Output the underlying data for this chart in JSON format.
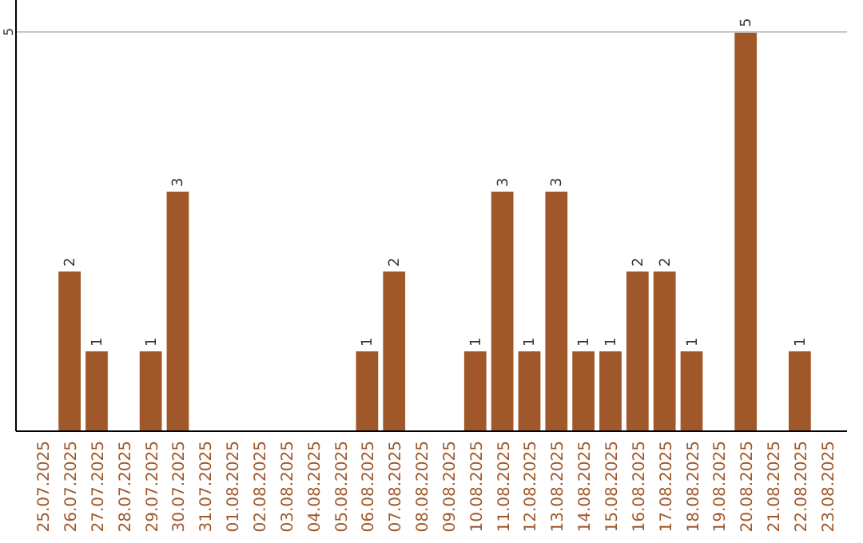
{
  "chart_data": {
    "type": "bar",
    "categories": [
      "25.07.2025",
      "26.07.2025",
      "27.07.2025",
      "28.07.2025",
      "29.07.2025",
      "30.07.2025",
      "31.07.2025",
      "01.08.2025",
      "02.08.2025",
      "03.08.2025",
      "04.08.2025",
      "05.08.2025",
      "06.08.2025",
      "07.08.2025",
      "08.08.2025",
      "09.08.2025",
      "10.08.2025",
      "11.08.2025",
      "12.08.2025",
      "13.08.2025",
      "14.08.2025",
      "15.08.2025",
      "16.08.2025",
      "17.08.2025",
      "18.08.2025",
      "19.08.2025",
      "20.08.2025",
      "21.08.2025",
      "22.08.2025",
      "23.08.2025"
    ],
    "values": [
      0,
      2,
      1,
      0,
      1,
      3,
      0,
      0,
      0,
      0,
      0,
      0,
      1,
      2,
      0,
      0,
      1,
      3,
      1,
      3,
      1,
      1,
      2,
      2,
      1,
      0,
      5,
      0,
      1,
      0
    ],
    "value_labels": [
      null,
      "2",
      "1",
      null,
      "1",
      "3",
      null,
      null,
      null,
      null,
      null,
      null,
      "1",
      "2",
      null,
      null,
      "1",
      "3",
      "1",
      "3",
      "1",
      "1",
      "2",
      "2",
      "1",
      null,
      "5",
      null,
      "1",
      null
    ],
    "color": "#a0582a",
    "ylim": [
      0,
      5
    ],
    "yticks": [
      5
    ],
    "ref_lines": [
      {
        "axis": "y",
        "value": 5,
        "color": "#c8c8c8"
      }
    ]
  }
}
